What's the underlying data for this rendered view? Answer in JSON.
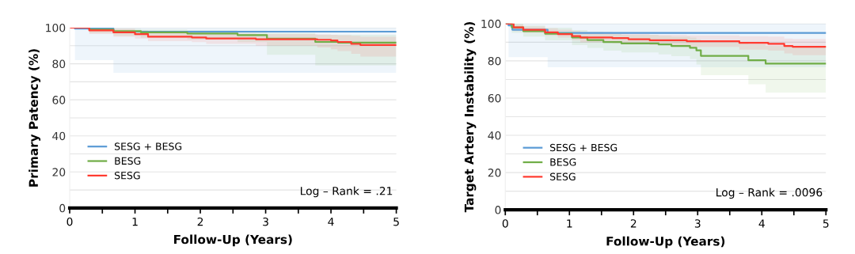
{
  "chart_data": [
    {
      "type": "step",
      "xlabel": "Follow-Up (Years)",
      "ylabel": "Primary Patency (%)",
      "xlim": [
        0,
        5
      ],
      "ylim": [
        0,
        100
      ],
      "xticks": [
        0,
        {
          "value": 0.5,
          "label": null
        },
        1,
        {
          "value": 1.5,
          "label": null
        },
        2,
        {
          "value": 2.5,
          "label": null
        },
        3,
        {
          "value": 3.5,
          "label": null
        },
        4,
        {
          "value": 4.5,
          "label": null
        },
        5
      ],
      "yticks": [
        0,
        {
          "value": 10,
          "label": null
        },
        20,
        {
          "value": 30,
          "label": null
        },
        40,
        {
          "value": 50,
          "label": null
        },
        60,
        {
          "value": 70,
          "label": null
        },
        80,
        {
          "value": 90,
          "label": null
        },
        100
      ],
      "grid": "y",
      "legend": "bottom left",
      "annotations": [
        "Log – Rank = .21"
      ],
      "series": [
        {
          "name": "SESG + BESG",
          "color": "#5b9bd5",
          "x": [
            0,
            0.08,
            0.67,
            5
          ],
          "values": [
            100,
            99.5,
            97.8,
            97.8
          ],
          "lower": [
            100,
            82,
            75,
            75
          ],
          "upper": [
            100,
            100,
            100,
            100
          ]
        },
        {
          "name": "BESG",
          "color": "#70ad47",
          "x": [
            0,
            0.3,
            0.67,
            1.09,
            1.8,
            2.57,
            3.02,
            3.76,
            4.11,
            5
          ],
          "values": [
            100,
            99,
            98.1,
            97.4,
            96.8,
            95.9,
            93.9,
            92.1,
            91.7,
            91.7
          ],
          "lower": [
            100,
            97,
            95.5,
            94.5,
            93.5,
            92,
            85,
            79,
            79,
            79
          ],
          "upper": [
            100,
            100,
            99.5,
            99,
            98.7,
            98.3,
            97,
            96,
            96,
            96
          ]
        },
        {
          "name": "SESG",
          "color": "#ff3b30",
          "x": [
            0,
            0.3,
            0.67,
            1.0,
            1.2,
            1.87,
            2.09,
            2.85,
            3.79,
            4.0,
            4.1,
            4.31,
            4.45,
            5
          ],
          "values": [
            100,
            98.5,
            97.4,
            96.4,
            95,
            94.6,
            94,
            93.6,
            93.3,
            92.9,
            92.1,
            91,
            90.4,
            90.4
          ],
          "lower": [
            100,
            96.5,
            95,
            94,
            92.5,
            92,
            91,
            90,
            89,
            88,
            87,
            85.5,
            84,
            84
          ],
          "upper": [
            100,
            100,
            99.5,
            98.5,
            97.5,
            97,
            96.7,
            96.5,
            96.3,
            96,
            95.8,
            95.5,
            95,
            95
          ]
        }
      ]
    },
    {
      "type": "step",
      "xlabel": "Follow-Up (Years)",
      "ylabel": "Target Artery Instability (%)",
      "xlim": [
        0,
        5
      ],
      "ylim": [
        0,
        100
      ],
      "xticks": [
        0,
        {
          "value": 0.5,
          "label": null
        },
        1,
        {
          "value": 1.5,
          "label": null
        },
        2,
        {
          "value": 2.5,
          "label": null
        },
        3,
        {
          "value": 3.5,
          "label": null
        },
        4,
        {
          "value": 4.5,
          "label": null
        },
        5
      ],
      "yticks": [
        0,
        {
          "value": 10,
          "label": null
        },
        20,
        {
          "value": 30,
          "label": null
        },
        40,
        {
          "value": 50,
          "label": null
        },
        60,
        {
          "value": 70,
          "label": null
        },
        80,
        {
          "value": 90,
          "label": null
        },
        100
      ],
      "grid": "y",
      "legend": "bottom left",
      "annotations": [
        "Log – Rank = .0096"
      ],
      "series": [
        {
          "name": "SESG + BESG",
          "color": "#5b9bd5",
          "x": [
            0,
            0.05,
            0.11,
            0.66,
            5
          ],
          "values": [
            100,
            99,
            96.7,
            95,
            95
          ],
          "lower": [
            100,
            82,
            82,
            76.6,
            76.6
          ],
          "upper": [
            100,
            100,
            100,
            100,
            100
          ]
        },
        {
          "name": "BESG",
          "color": "#70ad47",
          "x": [
            0,
            0.1,
            0.28,
            0.62,
            1.04,
            1.28,
            1.53,
            1.81,
            2.39,
            2.59,
            2.88,
            2.98,
            3.05,
            3.79,
            4.06,
            5
          ],
          "values": [
            100,
            98,
            96,
            94.6,
            92.6,
            91.2,
            90.1,
            89.4,
            88.8,
            88,
            87,
            85.6,
            82.7,
            80.3,
            78.5,
            78.5
          ],
          "lower": [
            100,
            95,
            93,
            91,
            88.5,
            87,
            85.5,
            84.5,
            83.5,
            82.5,
            81,
            78,
            72.3,
            67.4,
            63,
            63
          ],
          "upper": [
            100,
            100,
            99,
            97.8,
            96.5,
            95.5,
            94.5,
            94,
            93.5,
            93,
            92.5,
            91.5,
            90,
            89,
            88,
            88
          ]
        },
        {
          "name": "SESG",
          "color": "#ff3b30",
          "x": [
            0,
            0.13,
            0.28,
            0.62,
            0.82,
            1.04,
            1.17,
            1.67,
            1.92,
            2.25,
            2.83,
            3.65,
            4.1,
            4.35,
            4.48,
            5
          ],
          "values": [
            100,
            98,
            96.7,
            95.3,
            94.4,
            93.3,
            92.6,
            92.2,
            91.6,
            91.1,
            90.5,
            89.7,
            89.2,
            88,
            87.6,
            87.6
          ],
          "lower": [
            100,
            96,
            95,
            93.5,
            92.5,
            91,
            90,
            89.5,
            89,
            88.5,
            87.5,
            86,
            85.5,
            84,
            83,
            83
          ],
          "upper": [
            100,
            99.5,
            98.5,
            97.5,
            96.8,
            96,
            95.5,
            95,
            94.5,
            94,
            93.7,
            93.2,
            93,
            92,
            91.8,
            91.8
          ]
        }
      ]
    }
  ]
}
